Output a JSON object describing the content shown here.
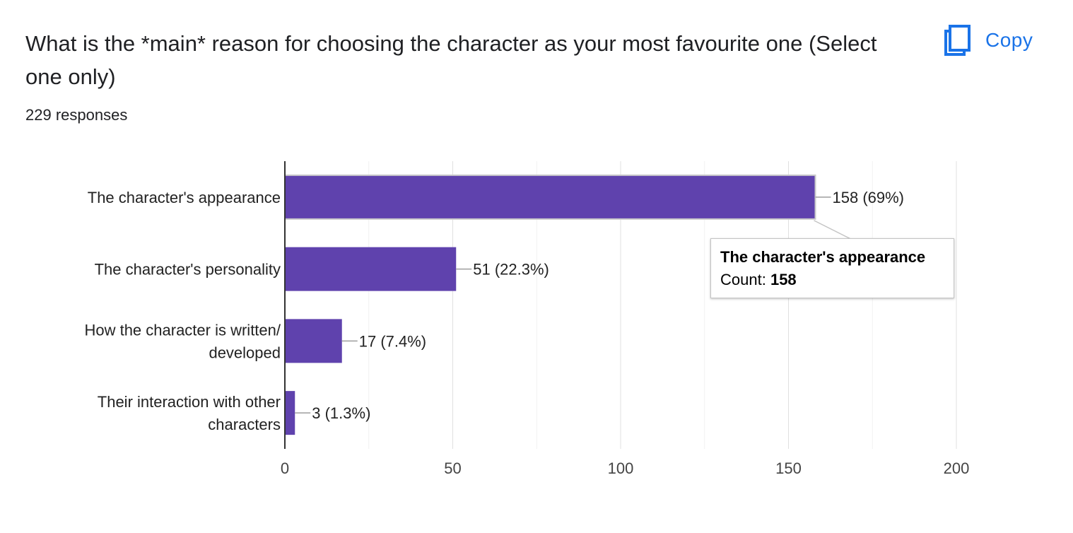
{
  "question": {
    "title": "What is the *main* reason for choosing the character as your most favourite one (Select one only)",
    "responses_label": "229 responses"
  },
  "copy_button": {
    "label": "Copy",
    "icon": "copy-icon",
    "color": "#1a73e8"
  },
  "chart_data": {
    "type": "bar",
    "orientation": "horizontal",
    "categories": [
      [
        "The character's appearance"
      ],
      [
        "The character's personality"
      ],
      [
        "How the character is written/",
        "developed"
      ],
      [
        "Their interaction with other",
        "characters"
      ]
    ],
    "values": [
      158,
      51,
      17,
      3
    ],
    "value_labels": [
      "158 (69%)",
      "51 (22.3%)",
      "17 (7.4%)",
      "3 (1.3%)"
    ],
    "xlim": [
      0,
      200
    ],
    "x_ticks": [
      0,
      50,
      100,
      150,
      200
    ],
    "minor_gridlines_step": 25,
    "grid": true,
    "bar_color": "#5f42ad",
    "highlighted_index": 0
  },
  "tooltip": {
    "title": "The character's appearance",
    "count_label": "Count:",
    "count_value": "158"
  }
}
